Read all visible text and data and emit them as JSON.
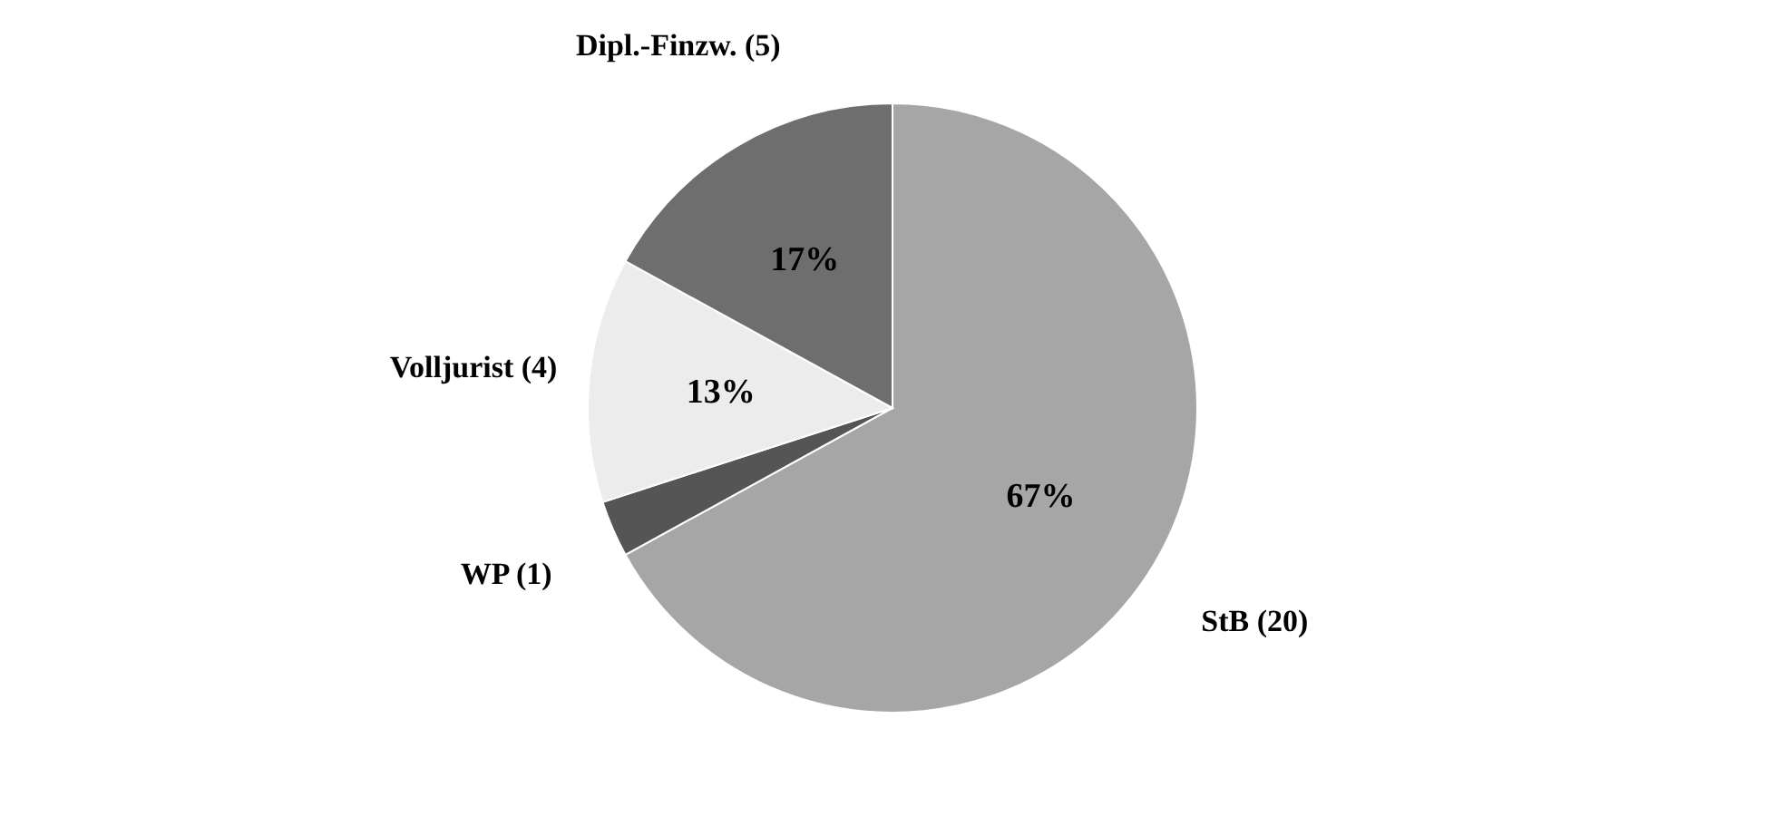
{
  "chart_data": {
    "type": "pie",
    "categories": [
      "StB (20)",
      "WP (1)",
      "Volljurist (4)",
      "Dipl.-Finzw. (5)"
    ],
    "values": [
      67,
      3,
      13,
      17
    ],
    "colors": [
      "#a6a6a6",
      "#555555",
      "#ececec",
      "#6e6e6e"
    ],
    "value_labels": [
      "67%",
      null,
      "13%",
      "17%"
    ]
  }
}
